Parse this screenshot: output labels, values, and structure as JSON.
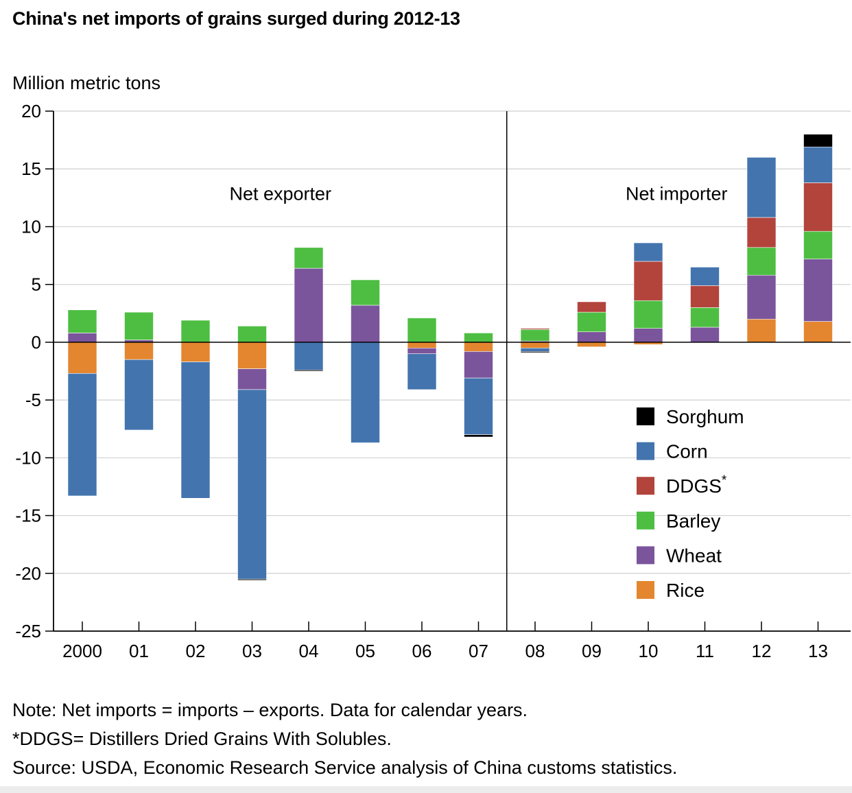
{
  "chart_data": {
    "type": "bar",
    "stacked": true,
    "title": "China's net imports of grains surged during 2012-13",
    "ylabel": "Million metric tons",
    "xlabel": "",
    "ylim": [
      -25,
      20
    ],
    "yticks": [
      20,
      15,
      10,
      5,
      0,
      -5,
      -10,
      -15,
      -20,
      -25
    ],
    "grid": true,
    "legend_position": "lower-right",
    "categories": [
      "2000",
      "01",
      "02",
      "03",
      "04",
      "05",
      "06",
      "07",
      "08",
      "09",
      "10",
      "11",
      "12",
      "13"
    ],
    "annotations": {
      "left_region": "Net exporter",
      "right_region": "Net importer",
      "divider_between": [
        "07",
        "08"
      ]
    },
    "series": [
      {
        "name": "Rice",
        "color": "#e4862f",
        "values": [
          -2.7,
          -1.5,
          -1.7,
          -2.3,
          0,
          0,
          -0.5,
          -0.8,
          -0.5,
          -0.4,
          -0.2,
          0,
          2.0,
          1.8
        ]
      },
      {
        "name": "Wheat",
        "color": "#7b559b",
        "values": [
          0.8,
          0.2,
          0,
          -1.8,
          6.4,
          3.2,
          -0.5,
          -2.3,
          0.1,
          0.9,
          1.2,
          1.3,
          3.8,
          5.4
        ]
      },
      {
        "name": "Barley",
        "color": "#4ebe43",
        "values": [
          2.0,
          2.4,
          1.9,
          1.4,
          1.8,
          2.2,
          2.1,
          0.8,
          1.0,
          1.7,
          2.4,
          1.7,
          2.4,
          2.4
        ]
      },
      {
        "name": "DDGS",
        "color": "#b2443c",
        "values": [
          0,
          0,
          0,
          0,
          0,
          0,
          0,
          0,
          0.1,
          0.9,
          3.4,
          1.9,
          2.6,
          4.2
        ]
      },
      {
        "name": "Corn",
        "color": "#4374ae",
        "values": [
          -10.6,
          -6.1,
          -11.8,
          -16.4,
          -2.4,
          -8.7,
          -3.1,
          -4.9,
          -0.3,
          0,
          1.6,
          1.6,
          5.2,
          3.1
        ]
      },
      {
        "name": "Sorghum",
        "color": "#000000",
        "values": [
          0,
          0,
          0,
          -0.1,
          -0.1,
          0,
          0,
          -0.2,
          -0.1,
          0,
          0,
          0,
          0,
          1.1
        ]
      }
    ],
    "legend": [
      {
        "name": "Sorghum",
        "color": "#000000",
        "superscript": ""
      },
      {
        "name": "Corn",
        "color": "#4374ae",
        "superscript": ""
      },
      {
        "name": "DDGS",
        "color": "#b2443c",
        "superscript": "*"
      },
      {
        "name": "Barley",
        "color": "#4ebe43",
        "superscript": ""
      },
      {
        "name": "Wheat",
        "color": "#7b559b",
        "superscript": ""
      },
      {
        "name": "Rice",
        "color": "#e4862f",
        "superscript": ""
      }
    ]
  },
  "notes": {
    "line1": "Note: Net imports = imports – exports. Data for calendar years.",
    "line2": "*DDGS= Distillers Dried Grains With Solubles.",
    "line3": "Source: USDA, Economic Research Service analysis of China customs statistics."
  }
}
